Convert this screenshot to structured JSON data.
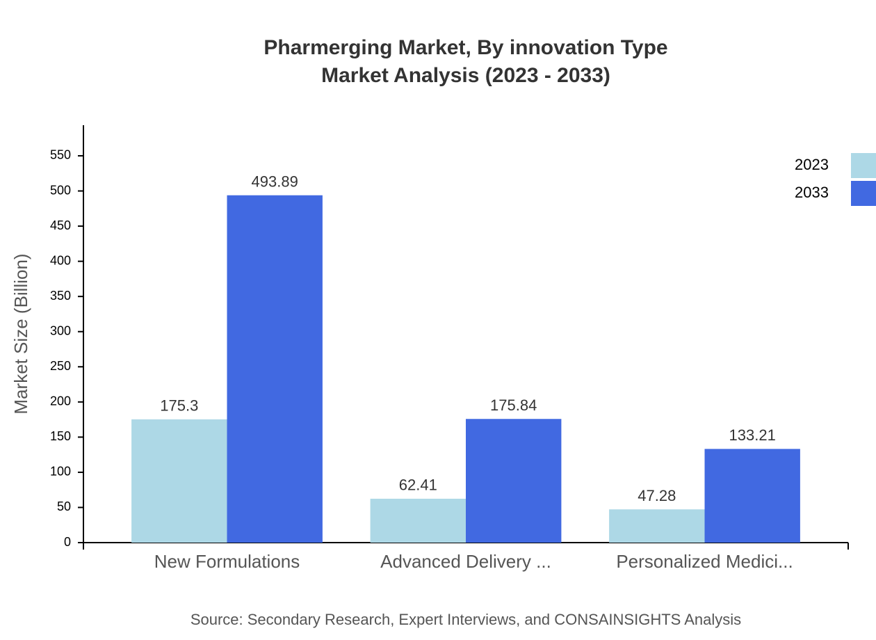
{
  "chart_data": {
    "type": "bar",
    "title": "Pharmerging Market, By innovation Type",
    "subtitle": "Market Analysis (2023 - 2033)",
    "y_label": "Market Size (Billion)",
    "source": "Source: Secondary Research, Expert Interviews, and CONSAINSIGHTS Analysis",
    "categories": [
      "New Formulations",
      "Advanced Delivery ...",
      "Personalized Medici..."
    ],
    "series": [
      {
        "name": "2023",
        "color": "#add8e6",
        "values": [
          175.3,
          62.41,
          47.28
        ]
      },
      {
        "name": "2033",
        "color": "#4169e1",
        "values": [
          493.89,
          175.84,
          133.21
        ]
      }
    ],
    "ylim": [
      0,
      593.5
    ],
    "yticks": [
      0,
      50,
      100,
      150,
      200,
      250,
      300,
      350,
      400,
      450,
      500,
      550
    ],
    "legend": "top-right"
  }
}
